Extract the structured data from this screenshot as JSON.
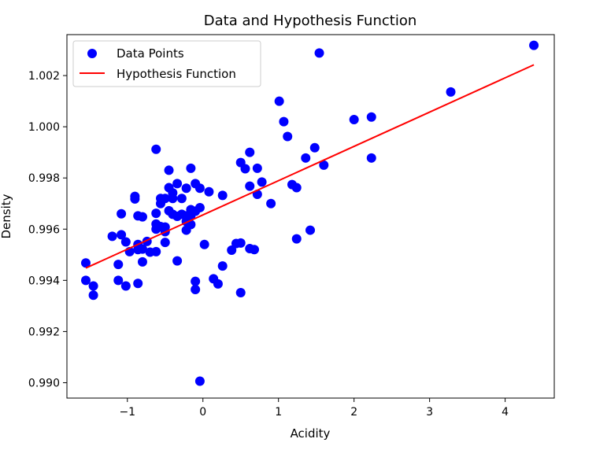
{
  "chart_data": {
    "type": "scatter",
    "title": "Data and Hypothesis Function",
    "xlabel": "Acidity",
    "ylabel": "Density",
    "xlim": [
      -1.8,
      4.65
    ],
    "ylim": [
      0.9894,
      1.0036
    ],
    "xticks": [
      -1,
      0,
      1,
      2,
      3,
      4
    ],
    "xtick_labels": [
      "−1",
      "0",
      "1",
      "2",
      "3",
      "4"
    ],
    "yticks": [
      0.99,
      0.992,
      0.994,
      0.996,
      0.998,
      1.0,
      1.002
    ],
    "ytick_labels": [
      "0.990",
      "0.992",
      "0.994",
      "0.996",
      "0.998",
      "1.000",
      "1.002"
    ],
    "grid": false,
    "legend_position": "top-left",
    "series": [
      {
        "name": "Data Points",
        "kind": "scatter",
        "color": "#0000ff",
        "points": [
          [
            -1.55,
            0.99468
          ],
          [
            -1.55,
            0.994
          ],
          [
            -1.45,
            0.99378
          ],
          [
            -1.45,
            0.99342
          ],
          [
            -1.2,
            0.99572
          ],
          [
            -1.12,
            0.99462
          ],
          [
            -1.12,
            0.994
          ],
          [
            -1.08,
            0.9966
          ],
          [
            -1.08,
            0.99578
          ],
          [
            -1.02,
            0.9955
          ],
          [
            -1.02,
            0.99378
          ],
          [
            -0.97,
            0.99512
          ],
          [
            -0.9,
            0.99728
          ],
          [
            -0.9,
            0.99718
          ],
          [
            -0.86,
            0.99652
          ],
          [
            -0.86,
            0.9954
          ],
          [
            -0.86,
            0.9952
          ],
          [
            -0.86,
            0.99388
          ],
          [
            -0.8,
            0.99648
          ],
          [
            -0.8,
            0.99522
          ],
          [
            -0.8,
            0.99472
          ],
          [
            -0.74,
            0.99552
          ],
          [
            -0.7,
            0.9951
          ],
          [
            -0.62,
            0.99912
          ],
          [
            -0.62,
            0.99662
          ],
          [
            -0.62,
            0.9962
          ],
          [
            -0.62,
            0.996
          ],
          [
            -0.62,
            0.99512
          ],
          [
            -0.56,
            0.9972
          ],
          [
            -0.56,
            0.997
          ],
          [
            -0.56,
            0.9961
          ],
          [
            -0.5,
            0.9972
          ],
          [
            -0.5,
            0.99608
          ],
          [
            -0.5,
            0.9959
          ],
          [
            -0.5,
            0.99548
          ],
          [
            -0.45,
            0.9983
          ],
          [
            -0.45,
            0.99762
          ],
          [
            -0.45,
            0.99672
          ],
          [
            -0.4,
            0.99742
          ],
          [
            -0.4,
            0.9972
          ],
          [
            -0.4,
            0.99658
          ],
          [
            -0.34,
            0.99778
          ],
          [
            -0.34,
            0.9965
          ],
          [
            -0.34,
            0.99476
          ],
          [
            -0.28,
            0.9972
          ],
          [
            -0.28,
            0.99658
          ],
          [
            -0.22,
            0.9976
          ],
          [
            -0.22,
            0.99652
          ],
          [
            -0.22,
            0.9963
          ],
          [
            -0.22,
            0.99596
          ],
          [
            -0.16,
            0.99838
          ],
          [
            -0.16,
            0.99676
          ],
          [
            -0.16,
            0.99652
          ],
          [
            -0.16,
            0.99618
          ],
          [
            -0.1,
            0.99778
          ],
          [
            -0.1,
            0.9967
          ],
          [
            -0.1,
            0.99396
          ],
          [
            -0.1,
            0.99364
          ],
          [
            -0.04,
            0.9976
          ],
          [
            -0.04,
            0.99684
          ],
          [
            -0.04,
            0.99006
          ],
          [
            0.02,
            0.9954
          ],
          [
            0.08,
            0.99746
          ],
          [
            0.14,
            0.99406
          ],
          [
            0.2,
            0.99386
          ],
          [
            0.26,
            0.99732
          ],
          [
            0.26,
            0.99456
          ],
          [
            0.38,
            0.99518
          ],
          [
            0.44,
            0.99544
          ],
          [
            0.5,
            0.9986
          ],
          [
            0.5,
            0.99546
          ],
          [
            0.5,
            0.99352
          ],
          [
            0.56,
            0.99836
          ],
          [
            0.62,
            0.999
          ],
          [
            0.62,
            0.99768
          ],
          [
            0.62,
            0.99524
          ],
          [
            0.68,
            0.9952
          ],
          [
            0.72,
            0.99838
          ],
          [
            0.72,
            0.99736
          ],
          [
            0.78,
            0.99784
          ],
          [
            0.9,
            0.997
          ],
          [
            1.01,
            1.001
          ],
          [
            1.07,
            1.0002
          ],
          [
            1.12,
            0.99962
          ],
          [
            1.18,
            0.99774
          ],
          [
            1.24,
            0.99762
          ],
          [
            1.24,
            0.99562
          ],
          [
            1.36,
            0.99878
          ],
          [
            1.42,
            0.99596
          ],
          [
            1.48,
            0.99918
          ],
          [
            1.54,
            1.00288
          ],
          [
            1.6,
            0.9985
          ],
          [
            2.0,
            1.00028
          ],
          [
            2.23,
            1.00038
          ],
          [
            2.23,
            0.99878
          ],
          [
            3.28,
            1.00136
          ],
          [
            4.38,
            1.00318
          ]
        ]
      },
      {
        "name": "Hypothesis Function",
        "kind": "line",
        "color": "#ff0000",
        "points": [
          [
            -1.55,
            0.99448
          ],
          [
            4.38,
            1.00242
          ]
        ]
      }
    ]
  }
}
